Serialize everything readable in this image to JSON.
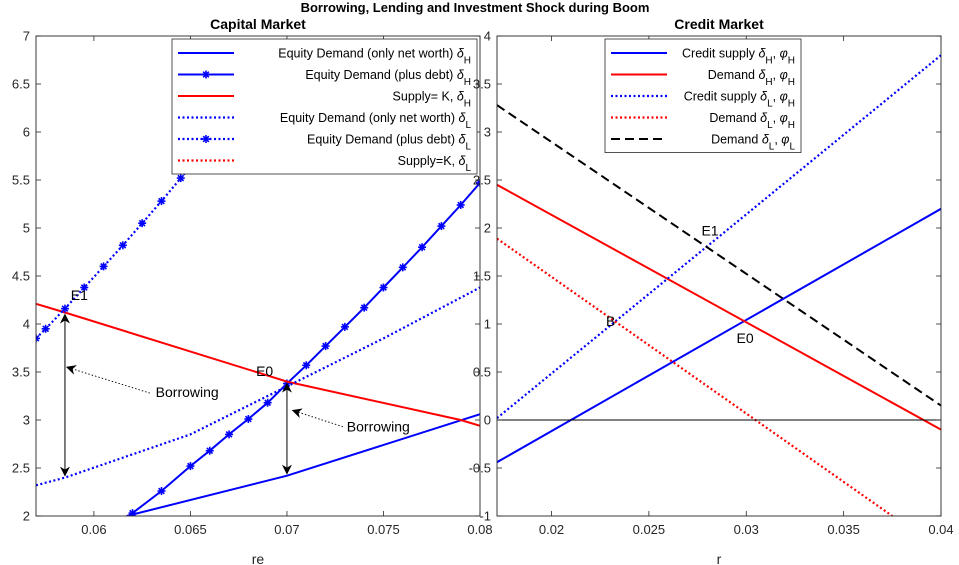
{
  "figure_title": "Borrowing, Lending and Investment Shock during Boom",
  "chart_data": [
    {
      "type": "line",
      "title": "Capital Market",
      "xlabel": "re",
      "ylabel": "",
      "xlim": [
        0.057,
        0.08
      ],
      "ylim": [
        2,
        7
      ],
      "xticks": [
        0.06,
        0.065,
        0.07,
        0.075,
        0.08
      ],
      "xtick_labels": [
        "0.06",
        "0.065",
        "0.07",
        "0.075",
        "0.08"
      ],
      "yticks": [
        2,
        2.5,
        3,
        3.5,
        4,
        4.5,
        5,
        5.5,
        6,
        6.5,
        7
      ],
      "ytick_labels": [
        "2",
        "2.5",
        "3",
        "3.5",
        "4",
        "4.5",
        "5",
        "5.5",
        "6",
        "6.5",
        "7"
      ],
      "grid": false,
      "legend_position": "top-right",
      "series": [
        {
          "name": "Equity Demand (only net worth)",
          "sym": "δ",
          "sub": "H",
          "color": "#0000ff",
          "style": "solid",
          "marker": false,
          "x": [
            0.0617,
            0.07,
            0.08
          ],
          "y": [
            2.0,
            2.42,
            3.06
          ]
        },
        {
          "name": "Equity Demand (plus debt)",
          "sym": "δ",
          "sub": "H",
          "color": "#0000ff",
          "style": "solid",
          "marker": true,
          "x": [
            0.0603,
            0.062,
            0.0635,
            0.065,
            0.066,
            0.067,
            0.068,
            0.069,
            0.07,
            0.071,
            0.072,
            0.073,
            0.074,
            0.075,
            0.076,
            0.077,
            0.078,
            0.079,
            0.08
          ],
          "y": [
            1.8,
            2.03,
            2.26,
            2.52,
            2.68,
            2.85,
            3.01,
            3.18,
            3.38,
            3.57,
            3.77,
            3.97,
            4.17,
            4.38,
            4.59,
            4.8,
            5.02,
            5.24,
            5.47
          ]
        },
        {
          "name": "Supply= K,",
          "sym": "δ",
          "sub": "H",
          "color": "#ff0000",
          "style": "solid",
          "marker": false,
          "x": [
            0.057,
            0.0585,
            0.07,
            0.079,
            0.08
          ],
          "y": [
            4.21,
            4.12,
            3.4,
            3.0,
            2.94
          ]
        },
        {
          "name": "Equity Demand (only net worth)",
          "sym": "δ",
          "sub": "L",
          "color": "#0000ff",
          "style": "dotted",
          "marker": false,
          "x": [
            0.057,
            0.0585,
            0.065,
            0.07,
            0.075,
            0.08
          ],
          "y": [
            2.32,
            2.4,
            2.85,
            3.35,
            3.85,
            4.38
          ]
        },
        {
          "name": "Equity Demand (plus debt)",
          "sym": "δ",
          "sub": "L",
          "color": "#0000ff",
          "style": "dotted",
          "marker": true,
          "x": [
            0.057,
            0.0575,
            0.0585,
            0.0595,
            0.0605,
            0.0615,
            0.0625,
            0.0635,
            0.0645,
            0.0655,
            0.0665
          ],
          "y": [
            3.85,
            3.95,
            4.16,
            4.38,
            4.6,
            4.82,
            5.05,
            5.28,
            5.52,
            5.76,
            6.0
          ]
        },
        {
          "name": "Supply=K,",
          "sym": "δ",
          "sub": "L",
          "color": "#ff0000",
          "style": "dotted",
          "marker": false,
          "x": [],
          "y": []
        }
      ],
      "annotations": [
        {
          "text": "E1",
          "x": 0.0588,
          "y": 4.25
        },
        {
          "text": "E0",
          "x": 0.0684,
          "y": 3.46
        },
        {
          "text": "Borrowing",
          "x": 0.0632,
          "y": 3.24
        },
        {
          "text": "Borrowing",
          "x": 0.0731,
          "y": 2.88
        }
      ]
    },
    {
      "type": "line",
      "title": "Credit Market",
      "xlabel": "r",
      "ylabel": "",
      "xlim": [
        0.0172,
        0.04
      ],
      "ylim": [
        -1,
        4
      ],
      "xticks": [
        0.02,
        0.025,
        0.03,
        0.035,
        0.04
      ],
      "xtick_labels": [
        "0.02",
        "0.025",
        "0.03",
        "0.035",
        "0.04"
      ],
      "yticks": [
        -1,
        -0.5,
        0,
        0.5,
        1,
        1.5,
        2,
        2.5,
        3,
        3.5,
        4
      ],
      "ytick_labels": [
        "-1",
        "-0.5",
        "0",
        "0.5",
        "1",
        "1.5",
        "2",
        "2.5",
        "3",
        "3.5",
        "4"
      ],
      "grid": false,
      "legend_position": "top-left",
      "series": [
        {
          "name": "Credit supply",
          "sym": "δ",
          "sub": "H",
          "sym2": "φ",
          "sub2": "H",
          "color": "#0000ff",
          "style": "solid",
          "x": [
            0.0172,
            0.04
          ],
          "y": [
            -0.44,
            2.2
          ]
        },
        {
          "name": "Demand",
          "sym": "δ",
          "sub": "H",
          "sym2": "φ",
          "sub2": "H",
          "color": "#ff0000",
          "style": "solid",
          "x": [
            0.0172,
            0.04
          ],
          "y": [
            2.45,
            -0.1
          ]
        },
        {
          "name": "Credit supply",
          "sym": "δ",
          "sub": "L",
          "sym2": "φ",
          "sub2": "H",
          "color": "#0000ff",
          "style": "dotted",
          "x": [
            0.0172,
            0.04
          ],
          "y": [
            0.02,
            3.8
          ]
        },
        {
          "name": "Demand",
          "sym": "δ",
          "sub": "L",
          "sym2": "φ",
          "sub2": "H",
          "color": "#ff0000",
          "style": "dotted",
          "x": [
            0.0172,
            0.0375
          ],
          "y": [
            1.89,
            -1.0
          ]
        },
        {
          "name": "Demand",
          "sym": "δ",
          "sub": "L",
          "sym2": "φ",
          "sub2": "L",
          "color": "#000000",
          "style": "dashed",
          "x": [
            0.0172,
            0.04
          ],
          "y": [
            3.28,
            0.15
          ]
        },
        {
          "name": "",
          "color": "#000000",
          "style": "thin",
          "x": [
            0.0172,
            0.04
          ],
          "y": [
            0,
            0
          ]
        }
      ],
      "annotations": [
        {
          "text": "E1",
          "x": 0.0277,
          "y": 1.92
        },
        {
          "text": "B",
          "x": 0.0228,
          "y": 0.98
        },
        {
          "text": "E0",
          "x": 0.0295,
          "y": 0.8
        }
      ]
    }
  ]
}
